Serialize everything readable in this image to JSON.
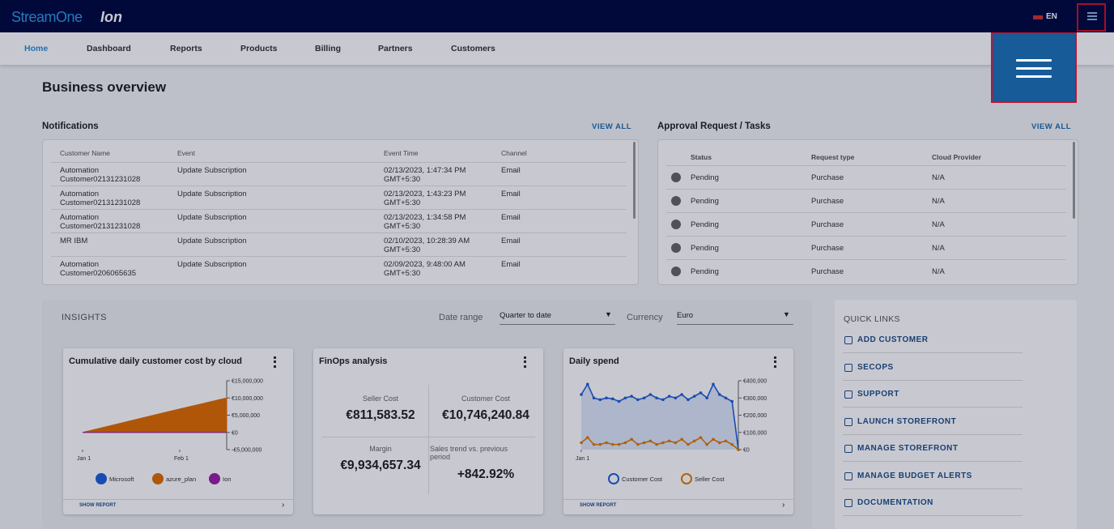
{
  "header": {
    "brand": "StreamOne",
    "brand_suffix": "Ion",
    "language": "EN"
  },
  "nav": [
    "Home",
    "Dashboard",
    "Reports",
    "Products",
    "Billing",
    "Partners",
    "Customers"
  ],
  "page_title": "Business overview",
  "notifications": {
    "title": "Notifications",
    "view_all": "VIEW ALL",
    "columns": [
      "Customer Name",
      "Event",
      "Event Time",
      "Channel"
    ],
    "rows": [
      [
        "Automation Customer02131231028",
        "Update Subscription",
        "02/13/2023, 1:47:34 PM GMT+5:30",
        "Email"
      ],
      [
        "Automation Customer02131231028",
        "Update Subscription",
        "02/13/2023, 1:43:23 PM GMT+5:30",
        "Email"
      ],
      [
        "Automation Customer02131231028",
        "Update Subscription",
        "02/13/2023, 1:34:58 PM GMT+5:30",
        "Email"
      ],
      [
        "MR IBM",
        "Update Subscription",
        "02/10/2023, 10:28:39 AM GMT+5:30",
        "Email"
      ],
      [
        "Automation Customer0206065635",
        "Update Subscription",
        "02/09/2023, 9:48:00 AM GMT+5:30",
        "Email"
      ]
    ]
  },
  "approvals": {
    "title": "Approval Request / Tasks",
    "view_all": "VIEW ALL",
    "columns": [
      "Status",
      "Request type",
      "Cloud Provider"
    ],
    "rows": [
      [
        "Pending",
        "Purchase",
        "N/A"
      ],
      [
        "Pending",
        "Purchase",
        "N/A"
      ],
      [
        "Pending",
        "Purchase",
        "N/A"
      ],
      [
        "Pending",
        "Purchase",
        "N/A"
      ],
      [
        "Pending",
        "Purchase",
        "N/A"
      ]
    ]
  },
  "insights": {
    "title": "INSIGHTS",
    "date_range_label": "Date range",
    "date_range": "Quarter to date",
    "currency_label": "Currency",
    "currency": "Euro"
  },
  "cumulative_chart": {
    "type": "area",
    "title": "Cumulative daily customer cost by cloud",
    "footer": "SHOW REPORT",
    "x": [
      0,
      15,
      30,
      46
    ],
    "xlim": [
      0,
      46
    ],
    "xticks": [
      {
        "value": 0,
        "label": "Jan 1"
      },
      {
        "value": 31,
        "label": "Feb 1"
      }
    ],
    "ylim": [
      -5000000,
      15000000
    ],
    "yticks": [
      {
        "value": 15000000,
        "label": "€15,000,000"
      },
      {
        "value": 10000000,
        "label": "€10,000,000"
      },
      {
        "value": 5000000,
        "label": "€5,000,000"
      },
      {
        "value": 0,
        "label": "€0"
      },
      {
        "value": -5000000,
        "label": "-€5,000,000"
      }
    ],
    "series": [
      {
        "name": "Microsoft",
        "color": "#1f5fd6",
        "values": [
          0,
          0,
          0,
          0
        ]
      },
      {
        "name": "azure_plan",
        "color": "#e06c00",
        "values": [
          0,
          3300000,
          6600000,
          10000000
        ]
      },
      {
        "name": "Ion",
        "color": "#9b1fa8",
        "values": [
          0,
          0,
          0,
          0
        ]
      }
    ]
  },
  "finops": {
    "title": "FinOps analysis",
    "metrics": [
      {
        "label": "Seller Cost",
        "value": "€811,583.52"
      },
      {
        "label": "Customer Cost",
        "value": "€10,746,240.84"
      },
      {
        "label": "Margin",
        "value": "€9,934,657.34"
      },
      {
        "label": "Sales trend vs. previous period",
        "value": "+842.92%"
      }
    ]
  },
  "daily_chart": {
    "type": "line",
    "title": "Daily spend",
    "footer": "SHOW REPORT",
    "x": [
      0,
      2,
      4,
      6,
      8,
      10,
      12,
      14,
      16,
      18,
      20,
      22,
      24,
      26,
      28,
      30,
      32,
      34,
      36,
      38,
      40,
      42,
      44,
      46,
      48,
      50
    ],
    "xlim": [
      0,
      50
    ],
    "xticks": [
      {
        "value": 0,
        "label": "Jan 1"
      }
    ],
    "ylim": [
      0,
      400000
    ],
    "yticks": [
      {
        "value": 400000,
        "label": "€400,000"
      },
      {
        "value": 300000,
        "label": "€300,000"
      },
      {
        "value": 200000,
        "label": "€200,000"
      },
      {
        "value": 100000,
        "label": "€100,000"
      },
      {
        "value": 0,
        "label": "€0"
      }
    ],
    "series": [
      {
        "name": "Customer Cost",
        "color": "#1f5fd6",
        "values": [
          320,
          380,
          300,
          290,
          300,
          295,
          280,
          300,
          310,
          290,
          300,
          320,
          300,
          290,
          310,
          300,
          320,
          290,
          310,
          330,
          300,
          380,
          320,
          300,
          280,
          0
        ]
      },
      {
        "name": "Seller Cost",
        "color": "#e07b00",
        "values": [
          40,
          70,
          30,
          30,
          40,
          30,
          30,
          40,
          60,
          30,
          40,
          50,
          30,
          40,
          50,
          40,
          60,
          30,
          50,
          70,
          30,
          60,
          40,
          50,
          30,
          0
        ]
      }
    ],
    "value_scale": 1000
  },
  "quick_links": {
    "title": "QUICK LINKS",
    "items": [
      "ADD CUSTOMER",
      "SECOPS",
      "SUPPORT",
      "LAUNCH STOREFRONT",
      "MANAGE STOREFRONT",
      "MANAGE BUDGET ALERTS",
      "DOCUMENTATION"
    ]
  }
}
